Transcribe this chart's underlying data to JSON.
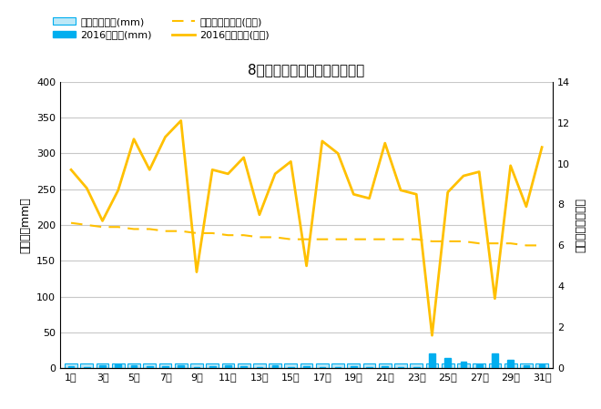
{
  "title": "8月降水量・日照時間（日別）",
  "days": [
    1,
    2,
    3,
    4,
    5,
    6,
    7,
    8,
    9,
    10,
    11,
    12,
    13,
    14,
    15,
    16,
    17,
    18,
    19,
    20,
    21,
    22,
    23,
    24,
    25,
    26,
    27,
    28,
    29,
    30,
    31
  ],
  "precipitation_2016": [
    3,
    2,
    4,
    5,
    4,
    3,
    3,
    4,
    2,
    3,
    4,
    3,
    2,
    4,
    2,
    3,
    2,
    2,
    3,
    2,
    3,
    2,
    2,
    20,
    14,
    9,
    5,
    20,
    12,
    4,
    5
  ],
  "precipitation_avg": [
    6,
    6,
    6,
    6,
    6,
    6,
    6,
    6,
    6,
    6,
    6,
    6,
    6,
    6,
    6,
    6,
    6,
    6,
    6,
    6,
    6,
    6,
    6,
    6,
    6,
    6,
    6,
    6,
    6,
    6,
    6
  ],
  "sunshine_2016": [
    9.7,
    8.8,
    7.2,
    8.7,
    11.2,
    9.7,
    11.3,
    12.1,
    4.7,
    9.7,
    9.5,
    10.3,
    7.5,
    9.5,
    10.1,
    5.0,
    11.1,
    10.5,
    8.5,
    8.3,
    11.0,
    8.7,
    8.5,
    1.6,
    8.6,
    9.4,
    9.6,
    3.4,
    9.9,
    7.9,
    10.8
  ],
  "sunshine_avg": [
    7.1,
    7.0,
    6.9,
    6.9,
    6.8,
    6.8,
    6.7,
    6.7,
    6.6,
    6.6,
    6.5,
    6.5,
    6.4,
    6.4,
    6.3,
    6.3,
    6.3,
    6.3,
    6.3,
    6.3,
    6.3,
    6.3,
    6.3,
    6.2,
    6.2,
    6.2,
    6.1,
    6.1,
    6.1,
    6.0,
    6.0
  ],
  "left_ylim": [
    0,
    400
  ],
  "right_ylim": [
    0,
    14
  ],
  "left_yticks": [
    0,
    50,
    100,
    150,
    200,
    250,
    300,
    350,
    400
  ],
  "right_yticks": [
    0,
    2,
    4,
    6,
    8,
    10,
    12,
    14
  ],
  "bar_color_2016": "#00AEEF",
  "bar_color_avg_face": "#BDE8F7",
  "bar_color_avg_edge": "#00AEEF",
  "line_color_sunshine_2016": "#FFC000",
  "line_color_sunshine_avg": "#FFC000",
  "legend_labels": [
    "降水量平年値(mm)",
    "2016降水量(mm)",
    "日照時間平年値(時間)",
    "2016日照時間(時間)"
  ],
  "ylabel_left": "降水量（mm）",
  "ylabel_right": "日照時間（時間）",
  "bg_color": "#ffffff",
  "grid_color": "#c8c8c8"
}
